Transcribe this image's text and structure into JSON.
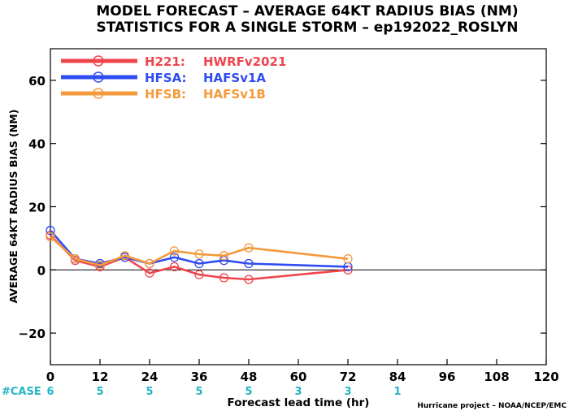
{
  "chart_data": {
    "type": "line",
    "title_line1": "MODEL FORECAST – AVERAGE 64KT RADIUS BIAS (NM)",
    "title_line2": "STATISTICS FOR A SINGLE STORM – ep192022_ROSLYN",
    "xlabel": "Forecast lead time (hr)",
    "ylabel": "AVERAGE 64KT RADIUS BIAS (NM)",
    "xlim": [
      0,
      120
    ],
    "ylim": [
      -30,
      70
    ],
    "xticks": [
      0,
      12,
      24,
      36,
      48,
      60,
      72,
      84,
      96,
      108,
      120
    ],
    "yticks": [
      -20,
      0,
      20,
      40,
      60
    ],
    "grid": false,
    "zero_line": true,
    "legend_position": "top-left",
    "credit": "Hurricane project – NOAA/NCEP/EMC",
    "case_label": "#CASE",
    "case_counts": [
      {
        "x": 0,
        "n": "6"
      },
      {
        "x": 12,
        "n": "5"
      },
      {
        "x": 24,
        "n": "5"
      },
      {
        "x": 36,
        "n": "5"
      },
      {
        "x": 48,
        "n": "5"
      },
      {
        "x": 60,
        "n": "3"
      },
      {
        "x": 72,
        "n": "3"
      },
      {
        "x": 84,
        "n": "1"
      }
    ],
    "case_color": "#22b5c4",
    "series": [
      {
        "legend_code": "H221:",
        "legend_name": "HWRFv2021",
        "color": "#f0444c",
        "x": [
          0,
          6,
          12,
          18,
          24,
          30,
          36,
          42,
          48,
          72
        ],
        "y": [
          11,
          3,
          1,
          4,
          -1,
          1,
          -1.5,
          -2.5,
          -3,
          0
        ]
      },
      {
        "legend_code": "HFSA:",
        "legend_name": "HAFSv1A",
        "color": "#2f4cf0",
        "x": [
          0,
          6,
          12,
          18,
          24,
          30,
          36,
          42,
          48,
          72
        ],
        "y": [
          12.5,
          3.5,
          2,
          4,
          2,
          4,
          2,
          3,
          2,
          1
        ]
      },
      {
        "legend_code": "HFSB:",
        "legend_name": "HAFSv1B",
        "color": "#f39a3c",
        "x": [
          0,
          6,
          12,
          18,
          24,
          30,
          36,
          42,
          48,
          72
        ],
        "y": [
          10.5,
          3.5,
          1.5,
          4.5,
          2,
          6,
          5,
          4.5,
          7,
          3.5
        ]
      }
    ]
  }
}
